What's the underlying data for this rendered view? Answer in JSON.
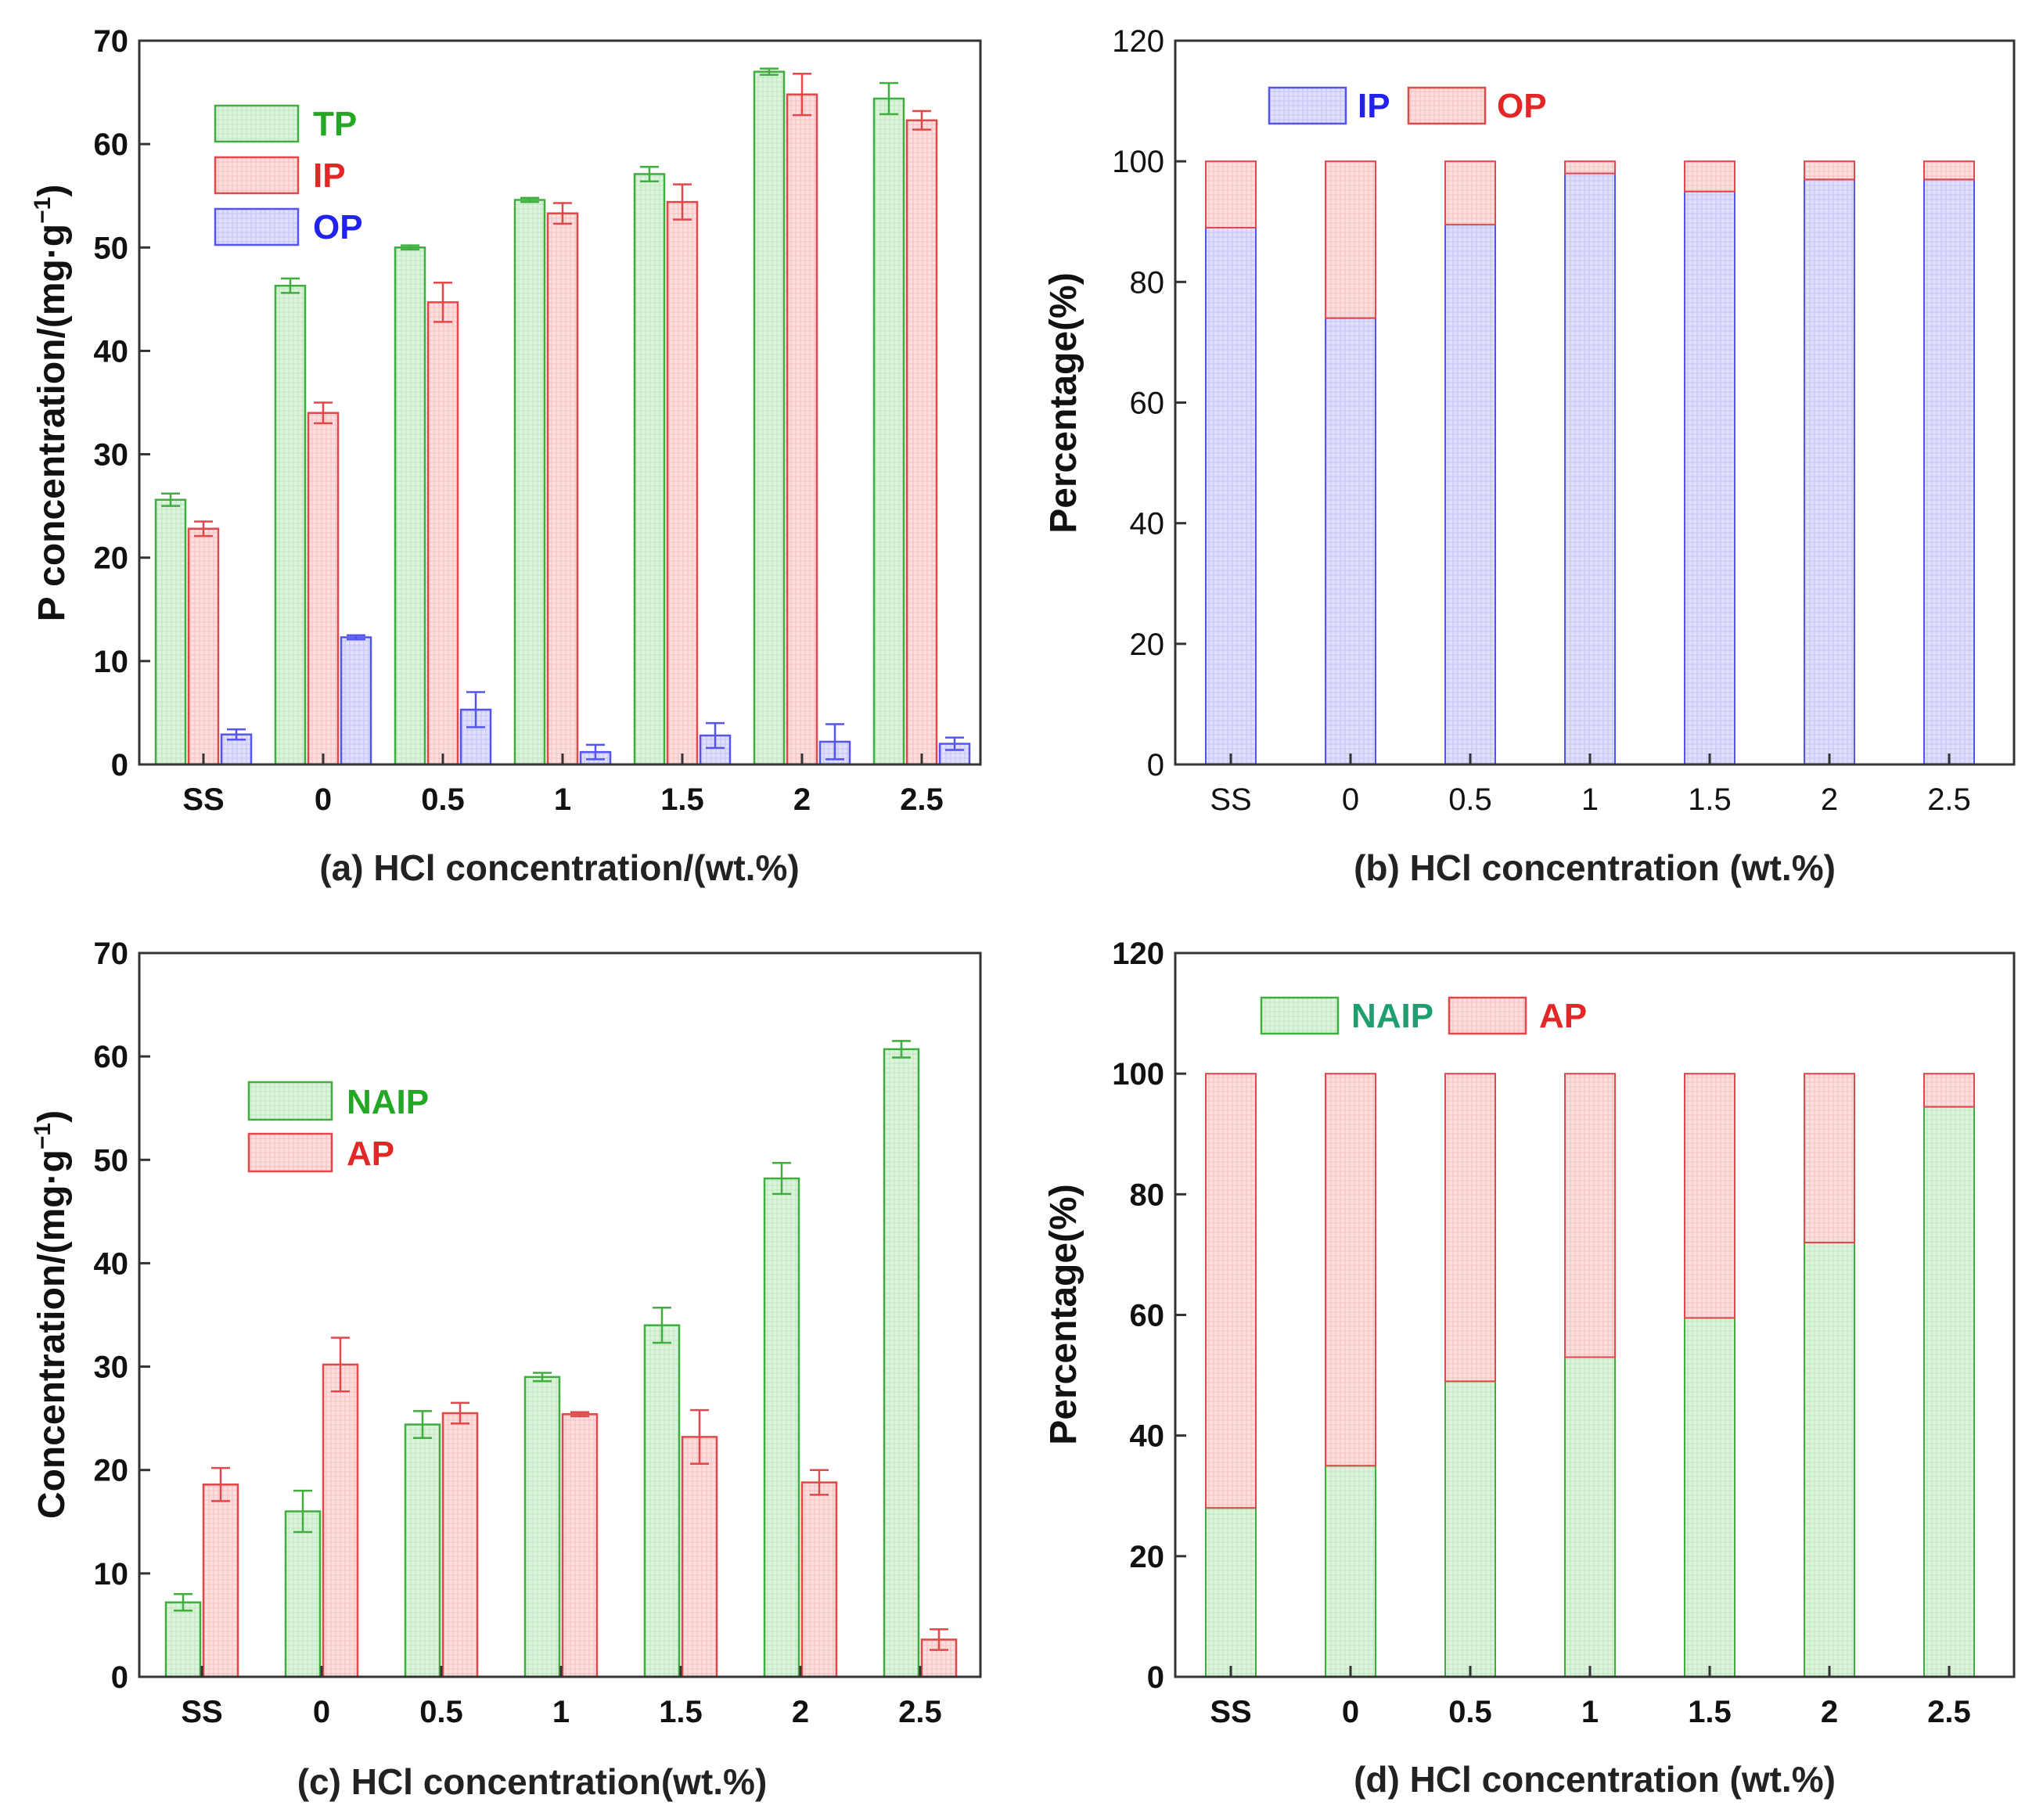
{
  "colors": {
    "green_fill": "#d9f2d9",
    "green_stroke": "#3fae3f",
    "red_fill": "#fbdada",
    "red_stroke": "#e0484a",
    "blue_fill": "#dcdcfa",
    "blue_stroke": "#5555ee",
    "green_text": "#22a822",
    "red_text": "#e32626",
    "blue_text": "#2222ee",
    "teal_text": "#1f9f6f"
  },
  "chart_data": [
    {
      "id": "a",
      "type": "bar",
      "caption": "(a) HCl concentration/(wt.%)",
      "ylabel": "P concentration/(mg·g⁻¹)",
      "ylabel_main": "P concentration/(mg·g",
      "ylabel_sup": "−1",
      "ylabel_close": ")",
      "categories": [
        "SS",
        "0",
        "0.5",
        "1",
        "1.5",
        "2",
        "2.5"
      ],
      "ylim": [
        0,
        70
      ],
      "yticks": [
        "0",
        "10",
        "20",
        "30",
        "40",
        "50",
        "60",
        "70"
      ],
      "legend_position": "top-left",
      "series": [
        {
          "name": "TP",
          "color": "green",
          "values": [
            25.6,
            46.3,
            50.0,
            54.6,
            57.1,
            67.0,
            64.4
          ],
          "errors": [
            0.6,
            0.7,
            0.2,
            0.2,
            0.7,
            0.3,
            1.5
          ]
        },
        {
          "name": "IP",
          "color": "red",
          "values": [
            22.8,
            34.0,
            44.7,
            53.3,
            54.4,
            64.8,
            62.3
          ],
          "errors": [
            0.7,
            1.0,
            1.9,
            1.0,
            1.7,
            2.0,
            0.9
          ]
        },
        {
          "name": "OP",
          "color": "blue",
          "values": [
            2.9,
            12.3,
            5.3,
            1.2,
            2.8,
            2.2,
            2.0
          ],
          "errors": [
            0.5,
            0.2,
            1.7,
            0.7,
            1.2,
            1.7,
            0.6
          ]
        }
      ]
    },
    {
      "id": "b",
      "type": "bar",
      "stacked": true,
      "caption": "(b) HCl concentration (wt.%)",
      "ylabel": "Percentage(%)",
      "categories": [
        "SS",
        "0",
        "0.5",
        "1",
        "1.5",
        "2",
        "2.5"
      ],
      "ylim": [
        0,
        120
      ],
      "yticks": [
        "0",
        "20",
        "40",
        "60",
        "80",
        "100",
        "120"
      ],
      "legend_position": "top-left",
      "series": [
        {
          "name": "IP",
          "color": "blue",
          "values": [
            89,
            74,
            89.5,
            98,
            95,
            97,
            97
          ]
        },
        {
          "name": "OP",
          "color": "red",
          "values": [
            11,
            26,
            10.5,
            2,
            5,
            3,
            3
          ]
        }
      ]
    },
    {
      "id": "c",
      "type": "bar",
      "caption": "(c) HCl concentration(wt.%)",
      "ylabel": "Concentration/(mg·g⁻¹)",
      "ylabel_main": "Concentration/(mg·g",
      "ylabel_sup": "−1",
      "ylabel_close": ")",
      "categories": [
        "SS",
        "0",
        "0.5",
        "1",
        "1.5",
        "2",
        "2.5"
      ],
      "ylim": [
        0,
        70
      ],
      "yticks": [
        "0",
        "10",
        "20",
        "30",
        "40",
        "50",
        "60",
        "70"
      ],
      "legend_position": "top-left",
      "series": [
        {
          "name": "NAIP",
          "color": "green",
          "values": [
            7.2,
            16.0,
            24.4,
            29.0,
            34.0,
            48.2,
            60.7
          ],
          "errors": [
            0.8,
            2.0,
            1.3,
            0.4,
            1.7,
            1.5,
            0.8
          ]
        },
        {
          "name": "AP",
          "color": "red",
          "values": [
            18.6,
            30.2,
            25.5,
            25.4,
            23.2,
            18.8,
            3.6
          ],
          "errors": [
            1.6,
            2.6,
            1.0,
            0.2,
            2.6,
            1.2,
            1.0
          ]
        }
      ]
    },
    {
      "id": "d",
      "type": "bar",
      "stacked": true,
      "caption": "(d) HCl concentration (wt.%)",
      "ylabel": "Percentage(%)",
      "categories": [
        "SS",
        "0",
        "0.5",
        "1",
        "1.5",
        "2",
        "2.5"
      ],
      "ylim": [
        0,
        120
      ],
      "yticks": [
        "0",
        "20",
        "40",
        "60",
        "80",
        "100",
        "120"
      ],
      "legend_position": "top-left",
      "series": [
        {
          "name": "NAIP",
          "color": "green",
          "values": [
            28,
            35,
            49,
            53,
            59.5,
            72,
            94.5
          ]
        },
        {
          "name": "AP",
          "color": "red",
          "values": [
            72,
            65,
            51,
            47,
            40.5,
            28,
            5.5
          ]
        }
      ]
    }
  ]
}
